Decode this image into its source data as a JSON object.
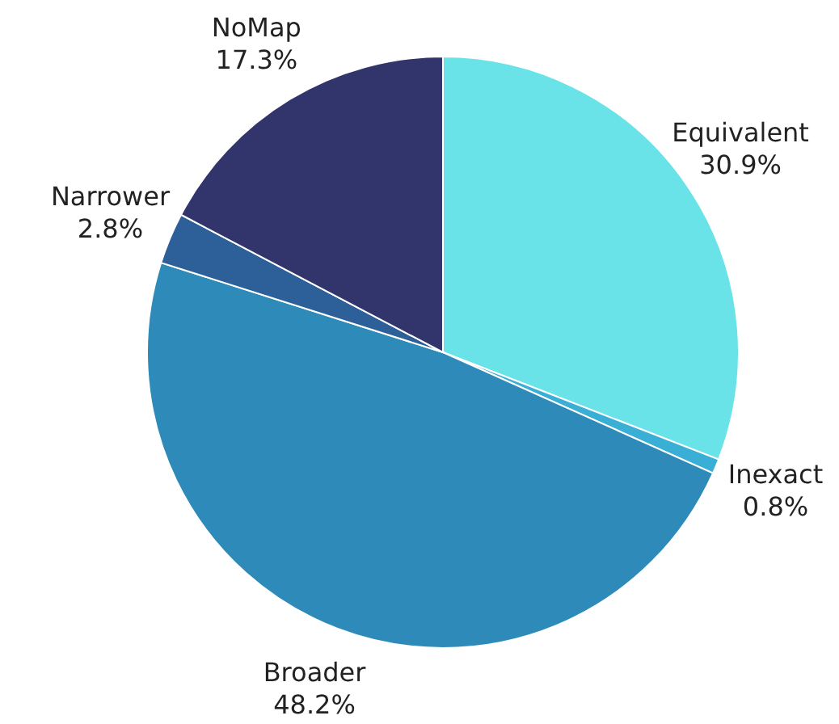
{
  "chart_data": {
    "type": "pie",
    "categories": [
      "Equivalent",
      "Inexact",
      "Broader",
      "Narrower",
      "NoMap"
    ],
    "values": [
      30.9,
      0.8,
      48.2,
      2.8,
      17.3
    ],
    "value_labels": [
      "30.9%",
      "0.8%",
      "48.2%",
      "2.8%",
      "17.3%"
    ],
    "colors": [
      "#6ae3e8",
      "#3aafd6",
      "#2e8ab8",
      "#2d5f99",
      "#31356b"
    ]
  }
}
